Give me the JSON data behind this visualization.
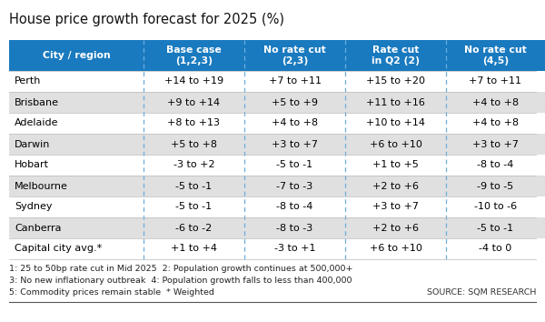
{
  "title": "House price growth forecast for 2025 (%)",
  "header": [
    "City / region",
    "Base case\n(1,2,3)",
    "No rate cut\n(2,3)",
    "Rate cut\nin Q2 (2)",
    "No rate cut\n(4,5)"
  ],
  "rows": [
    [
      "Perth",
      "+14 to +19",
      "+7 to +11",
      "+15 to +20",
      "+7 to +11"
    ],
    [
      "Brisbane",
      "+9 to +14",
      "+5 to +9",
      "+11 to +16",
      "+4 to +8"
    ],
    [
      "Adelaide",
      "+8 to +13",
      "+4 to +8",
      "+10 to +14",
      "+4 to +8"
    ],
    [
      "Darwin",
      "+5 to +8",
      "+3 to +7",
      "+6 to +10",
      "+3 to +7"
    ],
    [
      "Hobart",
      "-3 to +2",
      "-5 to -1",
      "+1 to +5",
      "-8 to -4"
    ],
    [
      "Melbourne",
      "-5 to -1",
      "-7 to -3",
      "+2 to +6",
      "-9 to -5"
    ],
    [
      "Sydney",
      "-5 to -1",
      "-8 to -4",
      "+3 to +7",
      "-10 to -6"
    ],
    [
      "Canberra",
      "-6 to -2",
      "-8 to -3",
      "+2 to +6",
      "-5 to -1"
    ],
    [
      "Capital city avg.*",
      "+1 to +4",
      "-3 to +1",
      "+6 to +10",
      "-4 to 0"
    ]
  ],
  "header_bg": "#1a7abf",
  "header_text": "#ffffff",
  "row_bg_odd": "#ffffff",
  "row_bg_even": "#e0e0e0",
  "text_color": "#000000",
  "divider_color": "#6aade0",
  "footnotes": [
    "1: 25 to 50bp rate cut in Mid 2025  2: Population growth continues at 500,000+",
    "3: No new inflationary outbreak  4: Population growth falls to less than 400,000",
    "5: Commodity prices remain stable  * Weighted"
  ],
  "source": "SOURCE: SQM RESEARCH",
  "title_fontsize": 10.5,
  "header_fontsize": 7.8,
  "cell_fontsize": 8.0,
  "footnote_fontsize": 6.8
}
